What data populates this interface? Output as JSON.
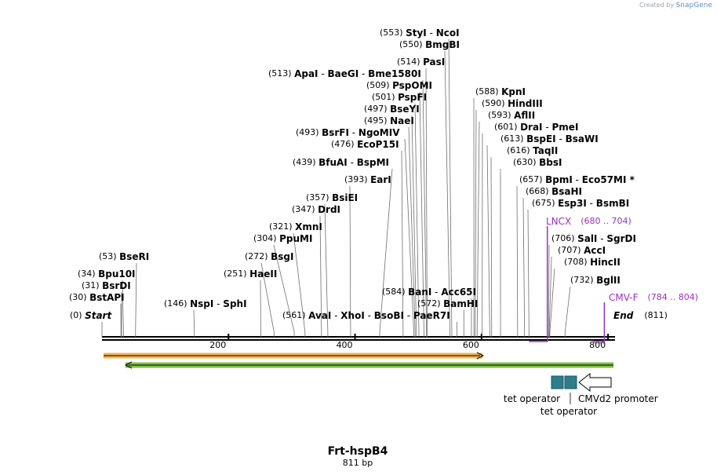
{
  "credit": {
    "prefix": "Created by",
    "brand": "SnapGene"
  },
  "colors": {
    "enzyme": "#000000",
    "primer": "#9b30c8",
    "leader": "#6e6e6e",
    "orangeFeature": "#f4b24e",
    "greenFeature": "#7ac143",
    "operator": "#2e7d8c"
  },
  "map": {
    "title": "Frt-hspB4",
    "length_label": "811 bp",
    "length": 811,
    "ticks": [
      {
        "value": 200,
        "label": "200"
      },
      {
        "value": 400,
        "label": "400"
      },
      {
        "value": 600,
        "label": "600"
      },
      {
        "value": 800,
        "label": "800"
      }
    ]
  },
  "sites": [
    {
      "pos": "(553)",
      "names": [
        "StyI",
        "NcoI"
      ],
      "bp": 553
    },
    {
      "pos": "(550)",
      "names": [
        "BmgBI"
      ],
      "bp": 550
    },
    {
      "pos": "(514)",
      "names": [
        "PasI"
      ],
      "bp": 514
    },
    {
      "pos": "(513)",
      "names": [
        "ApaI",
        "BaeGI",
        "Bme1580I"
      ],
      "bp": 513
    },
    {
      "pos": "(509)",
      "names": [
        "PspOMI"
      ],
      "bp": 509
    },
    {
      "pos": "(501)",
      "names": [
        "PspFI"
      ],
      "bp": 501
    },
    {
      "pos": "(497)",
      "names": [
        "BseYI"
      ],
      "bp": 497
    },
    {
      "pos": "(495)",
      "names": [
        "NaeI"
      ],
      "bp": 495
    },
    {
      "pos": "(493)",
      "names": [
        "BsrFI",
        "NgoMIV"
      ],
      "bp": 493
    },
    {
      "pos": "(476)",
      "names": [
        "EcoP15I"
      ],
      "bp": 476
    },
    {
      "pos": "(439)",
      "names": [
        "BfuAI",
        "BspMI"
      ],
      "bp": 439
    },
    {
      "pos": "(393)",
      "names": [
        "EarI"
      ],
      "bp": 393
    },
    {
      "pos": "(357)",
      "names": [
        "BsiEI"
      ],
      "bp": 357
    },
    {
      "pos": "(347)",
      "names": [
        "DrdI"
      ],
      "bp": 347
    },
    {
      "pos": "(321)",
      "names": [
        "XmnI"
      ],
      "bp": 321
    },
    {
      "pos": "(304)",
      "names": [
        "PpuMI"
      ],
      "bp": 304
    },
    {
      "pos": "(272)",
      "names": [
        "BsgI"
      ],
      "bp": 272
    },
    {
      "pos": "(251)",
      "names": [
        "HaeII"
      ],
      "bp": 251
    },
    {
      "pos": "(146)",
      "names": [
        "NspI",
        "SphI"
      ],
      "bp": 146
    },
    {
      "pos": "(53)",
      "names": [
        "BseRI"
      ],
      "bp": 53
    },
    {
      "pos": "(34)",
      "names": [
        "Bpu10I"
      ],
      "bp": 34
    },
    {
      "pos": "(31)",
      "names": [
        "BsrDI"
      ],
      "bp": 31
    },
    {
      "pos": "(30)",
      "names": [
        "BstAPI"
      ],
      "bp": 30
    },
    {
      "pos": "(0)",
      "names": [
        "Start"
      ],
      "bp": 0
    },
    {
      "pos": "(561)",
      "names": [
        "AvaI",
        "XhoI",
        "BsoBI",
        "PaeR7I"
      ],
      "bp": 561
    },
    {
      "pos": "(584)",
      "names": [
        "BanI",
        "Acc65I"
      ],
      "bp": 584
    },
    {
      "pos": "(572)",
      "names": [
        "BamHI"
      ],
      "bp": 572
    },
    {
      "pos": "(588)",
      "names": [
        "KpnI"
      ],
      "bp": 588
    },
    {
      "pos": "(590)",
      "names": [
        "HindIII"
      ],
      "bp": 590
    },
    {
      "pos": "(593)",
      "names": [
        "AflII"
      ],
      "bp": 593
    },
    {
      "pos": "(601)",
      "names": [
        "DraI",
        "PmeI"
      ],
      "bp": 601
    },
    {
      "pos": "(613)",
      "names": [
        "BspEI",
        "BsaWI"
      ],
      "bp": 613
    },
    {
      "pos": "(616)",
      "names": [
        "TaqII"
      ],
      "bp": 616
    },
    {
      "pos": "(630)",
      "names": [
        "BbsI"
      ],
      "bp": 630
    },
    {
      "pos": "(657)",
      "names": [
        "BpmI",
        "Eco57MI *"
      ],
      "bp": 657
    },
    {
      "pos": "(668)",
      "names": [
        "BsaHI"
      ],
      "bp": 668
    },
    {
      "pos": "(675)",
      "names": [
        "Esp3I",
        "BsmBI"
      ],
      "bp": 675
    },
    {
      "pos": "(706)",
      "names": [
        "SalI",
        "SgrDI"
      ],
      "bp": 706
    },
    {
      "pos": "(707)",
      "names": [
        "AccI"
      ],
      "bp": 707
    },
    {
      "pos": "(708)",
      "names": [
        "HincII"
      ],
      "bp": 708
    },
    {
      "pos": "(732)",
      "names": [
        "BglII"
      ],
      "bp": 732
    },
    {
      "pos": "(811)",
      "names": [
        "End"
      ],
      "bp": 811
    }
  ],
  "primers": [
    {
      "name": "LNCX",
      "range": "(680 .. 704)",
      "start": 680,
      "end": 704
    },
    {
      "name": "CMV-F",
      "range": "(784 .. 804)",
      "start": 784,
      "end": 804
    }
  ],
  "features": [
    {
      "name": "orange feature",
      "start": 0,
      "end": 605,
      "direction": "forward"
    },
    {
      "name": "green feature",
      "start": 37,
      "end": 811,
      "direction": "reverse"
    },
    {
      "name": "tet operator",
      "start": 713,
      "end": 732
    },
    {
      "name": "tet operator",
      "start": 734,
      "end": 754
    },
    {
      "name": "CMVd2 promoter",
      "start": 757,
      "end": 811,
      "direction": "reverse"
    }
  ],
  "feature_labels": [
    "tet operator",
    "tet operator",
    "CMVd2 promoter"
  ]
}
